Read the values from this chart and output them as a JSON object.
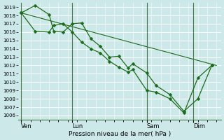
{
  "xlabel": "Pression niveau de la mer( hPa )",
  "ylim": [
    1005.5,
    1019.5
  ],
  "yticks": [
    1006,
    1007,
    1008,
    1009,
    1010,
    1011,
    1012,
    1013,
    1014,
    1015,
    1016,
    1017,
    1018,
    1019
  ],
  "day_labels": [
    "Ven",
    "Lun",
    "Sam",
    "Dim"
  ],
  "day_positions": [
    0.0,
    5.5,
    13.5,
    18.5
  ],
  "xlim": [
    -0.3,
    21.5
  ],
  "bg_color": "#cce8e8",
  "grid_color": "#b0d8d8",
  "line_color": "#1a6b1a",
  "vline_color": "#4a7a4a",
  "line1": {
    "x": [
      0.0,
      1.5,
      3.0,
      3.5,
      4.5,
      5.5,
      6.5,
      7.5,
      8.5,
      9.5,
      10.5,
      11.5,
      12.0,
      13.5,
      14.5,
      16.0,
      17.5,
      19.0,
      20.5
    ],
    "y": [
      1018.3,
      1019.2,
      1018.1,
      1016.1,
      1016.0,
      1017.0,
      1017.1,
      1015.2,
      1014.3,
      1013.0,
      1013.1,
      1011.7,
      1012.2,
      1011.1,
      1009.6,
      1008.5,
      1006.5,
      1008.0,
      1012.0
    ],
    "marker": "D",
    "markersize": 2.5,
    "lw": 0.9
  },
  "line2": {
    "x": [
      0.0,
      1.5,
      3.0,
      3.5,
      4.5,
      5.5,
      6.5,
      7.5,
      8.5,
      9.5,
      10.5,
      11.5,
      12.0,
      13.5,
      14.5,
      16.0,
      17.5,
      19.0,
      20.5
    ],
    "y": [
      1018.3,
      1016.1,
      1016.0,
      1016.8,
      1017.0,
      1016.0,
      1014.8,
      1014.0,
      1013.5,
      1012.5,
      1011.8,
      1011.2,
      1011.5,
      1009.0,
      1008.8,
      1008.0,
      1006.3,
      1010.5,
      1012.0
    ],
    "marker": "D",
    "markersize": 2.5,
    "lw": 0.9
  },
  "line3": {
    "x": [
      0.0,
      21.0
    ],
    "y": [
      1018.3,
      1012.0
    ],
    "marker": null,
    "lw": 0.8
  },
  "vlines": [
    0.0,
    5.5,
    13.5,
    18.5
  ]
}
